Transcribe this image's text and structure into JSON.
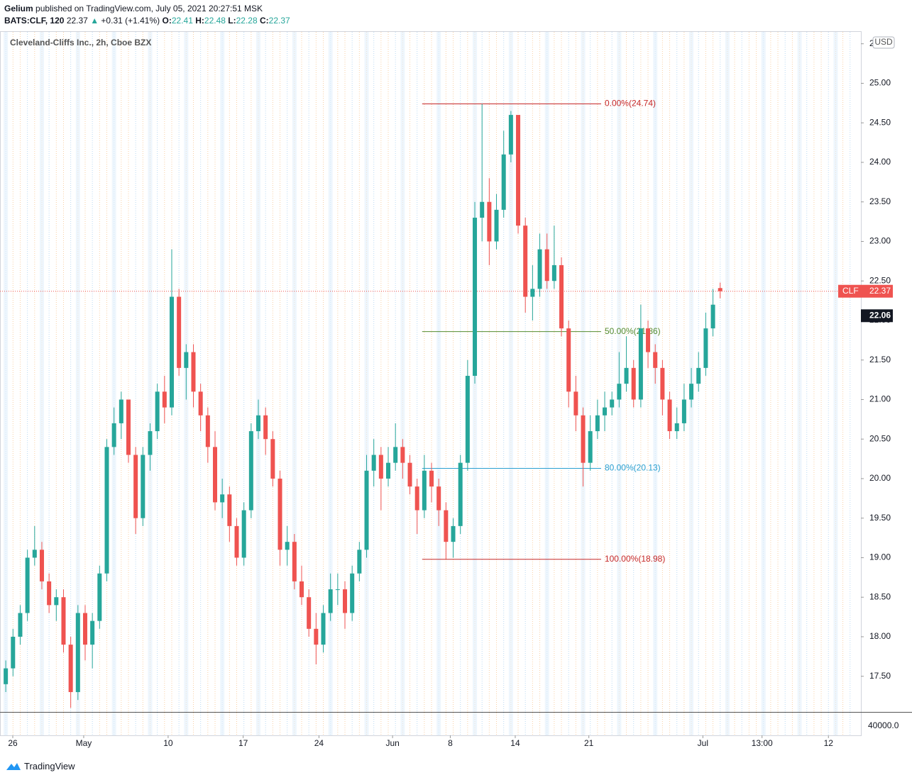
{
  "header": {
    "author": "Gelium",
    "published": "published on TradingView.com, July 05, 2021 20:27:51 MSK",
    "symbol": "BATS:CLF, 120",
    "change_arrow": "▲",
    "change": "+0.31 (+1.41%)",
    "o": "O:",
    "h": "H:",
    "l": "L:",
    "c": "C:"
  },
  "footer": {
    "brand": "TradingView"
  },
  "chart_data": {
    "type": "candlestick",
    "title": "Cleveland-Cliffs Inc., 2h, Cboe BZX",
    "currency": "USD",
    "up_color": "#26a69a",
    "down_color": "#ef5350",
    "ylim": [
      17.04,
      25.65
    ],
    "yticks": [
      {
        "value": 17.5,
        "label": "17.50"
      },
      {
        "value": 18,
        "label": "18.00"
      },
      {
        "value": 18.5,
        "label": "18.50"
      },
      {
        "value": 19,
        "label": "19.00"
      },
      {
        "value": 19.5,
        "label": "19.50"
      },
      {
        "value": 20,
        "label": "20.00"
      },
      {
        "value": 20.5,
        "label": "20.50"
      },
      {
        "value": 21,
        "label": "21.00"
      },
      {
        "value": 21.5,
        "label": "21.50"
      },
      {
        "value": 22,
        "label": "22.00"
      },
      {
        "value": 22.5,
        "label": "22.50"
      },
      {
        "value": 23,
        "label": "23.00"
      },
      {
        "value": 23.5,
        "label": "23.50"
      },
      {
        "value": 24,
        "label": "24.00"
      },
      {
        "value": 24.5,
        "label": "24.50"
      },
      {
        "value": 25,
        "label": "25.00"
      },
      {
        "value": 25.5,
        "label": "25.50"
      }
    ],
    "xlim": [
      -0.8,
      118.5
    ],
    "xticks": [
      {
        "value": 0.97,
        "label": "26"
      },
      {
        "value": 10.8,
        "label": "May"
      },
      {
        "value": 22.5,
        "label": "10"
      },
      {
        "value": 32.9,
        "label": "17"
      },
      {
        "value": 43.4,
        "label": "24"
      },
      {
        "value": 53.6,
        "label": "Jun"
      },
      {
        "value": 61.6,
        "label": "8"
      },
      {
        "value": 70.6,
        "label": "14"
      },
      {
        "value": 80.8,
        "label": "21"
      },
      {
        "value": 96.6,
        "label": "Jul"
      },
      {
        "value": 104.8,
        "label": "13:00"
      },
      {
        "value": 114.0,
        "label": "12"
      }
    ],
    "volume_ticks": [
      {
        "value": 40000,
        "label": "40000.0"
      }
    ],
    "ohlc": [
      [
        17.4,
        17.7,
        17.3,
        17.6
      ],
      [
        17.6,
        18.1,
        17.5,
        18.0
      ],
      [
        18.0,
        18.4,
        17.9,
        18.3
      ],
      [
        18.3,
        19.1,
        18.2,
        19.0
      ],
      [
        19.0,
        19.4,
        18.9,
        19.1
      ],
      [
        19.1,
        19.2,
        18.6,
        18.7
      ],
      [
        18.7,
        18.8,
        18.3,
        18.4
      ],
      [
        18.4,
        18.6,
        18.2,
        18.5
      ],
      [
        18.5,
        18.6,
        17.8,
        17.9
      ],
      [
        17.9,
        18.0,
        17.1,
        17.3
      ],
      [
        17.3,
        18.4,
        17.2,
        18.3
      ],
      [
        18.3,
        18.4,
        17.7,
        17.9
      ],
      [
        17.9,
        18.3,
        17.6,
        18.2
      ],
      [
        18.2,
        18.9,
        18.1,
        18.8
      ],
      [
        18.8,
        20.5,
        18.7,
        20.4
      ],
      [
        20.4,
        20.9,
        20.3,
        20.7
      ],
      [
        20.7,
        21.1,
        20.5,
        21.0
      ],
      [
        21.0,
        21.0,
        20.2,
        20.3
      ],
      [
        20.3,
        20.4,
        19.3,
        19.5
      ],
      [
        19.5,
        20.4,
        19.4,
        20.3
      ],
      [
        20.3,
        20.7,
        20.1,
        20.6
      ],
      [
        20.6,
        21.2,
        20.5,
        21.1
      ],
      [
        21.1,
        21.3,
        20.7,
        20.9
      ],
      [
        20.9,
        22.9,
        20.8,
        22.3
      ],
      [
        22.3,
        22.4,
        21.3,
        21.4
      ],
      [
        21.4,
        21.7,
        21.0,
        21.6
      ],
      [
        21.6,
        21.7,
        20.9,
        21.1
      ],
      [
        21.1,
        21.2,
        20.6,
        20.8
      ],
      [
        20.8,
        20.9,
        20.2,
        20.4
      ],
      [
        20.4,
        20.6,
        19.6,
        19.7
      ],
      [
        19.7,
        20.0,
        19.5,
        19.8
      ],
      [
        19.8,
        19.9,
        19.2,
        19.4
      ],
      [
        19.4,
        19.5,
        18.9,
        19.0
      ],
      [
        19.0,
        19.7,
        18.9,
        19.6
      ],
      [
        19.6,
        20.7,
        19.5,
        20.6
      ],
      [
        20.6,
        21.0,
        20.5,
        20.8
      ],
      [
        20.8,
        20.9,
        20.3,
        20.5
      ],
      [
        20.5,
        20.6,
        19.9,
        20.0
      ],
      [
        20.0,
        20.1,
        18.9,
        19.1
      ],
      [
        19.1,
        19.4,
        18.9,
        19.2
      ],
      [
        19.2,
        19.3,
        18.6,
        18.7
      ],
      [
        18.7,
        18.9,
        18.4,
        18.5
      ],
      [
        18.5,
        18.6,
        18.0,
        18.1
      ],
      [
        18.1,
        18.3,
        17.65,
        17.9
      ],
      [
        17.9,
        18.4,
        17.8,
        18.3
      ],
      [
        18.3,
        18.8,
        18.2,
        18.6
      ],
      [
        18.6,
        18.8,
        18.4,
        18.6
      ],
      [
        18.6,
        18.7,
        18.1,
        18.3
      ],
      [
        18.3,
        18.9,
        18.2,
        18.8
      ],
      [
        18.8,
        19.2,
        18.7,
        19.1
      ],
      [
        19.1,
        20.3,
        19.0,
        20.1
      ],
      [
        20.1,
        20.5,
        19.9,
        20.3
      ],
      [
        20.3,
        20.4,
        19.6,
        20.0
      ],
      [
        20.0,
        20.4,
        19.9,
        20.2
      ],
      [
        20.2,
        20.7,
        20.1,
        20.4
      ],
      [
        20.4,
        20.5,
        20.0,
        20.2
      ],
      [
        20.2,
        20.3,
        19.8,
        19.9
      ],
      [
        19.9,
        20.0,
        19.3,
        19.6
      ],
      [
        19.6,
        20.3,
        19.5,
        20.1
      ],
      [
        20.1,
        20.2,
        19.7,
        19.9
      ],
      [
        19.9,
        20.0,
        19.4,
        19.6
      ],
      [
        19.6,
        19.7,
        18.98,
        19.2
      ],
      [
        19.2,
        19.5,
        19.0,
        19.4
      ],
      [
        19.4,
        20.3,
        19.3,
        20.2
      ],
      [
        20.2,
        21.5,
        20.1,
        21.3
      ],
      [
        21.3,
        23.5,
        21.2,
        23.3
      ],
      [
        23.3,
        24.74,
        23.0,
        23.5
      ],
      [
        23.5,
        23.8,
        22.7,
        23.0
      ],
      [
        23.0,
        23.6,
        22.9,
        23.4
      ],
      [
        23.4,
        24.4,
        23.3,
        24.1
      ],
      [
        24.1,
        24.65,
        24.0,
        24.6
      ],
      [
        24.6,
        24.6,
        23.1,
        23.2
      ],
      [
        23.2,
        23.3,
        22.1,
        22.3
      ],
      [
        22.3,
        22.7,
        22.0,
        22.4
      ],
      [
        22.4,
        23.1,
        22.3,
        22.9
      ],
      [
        22.9,
        23.1,
        22.4,
        22.5
      ],
      [
        22.5,
        23.2,
        22.4,
        22.7
      ],
      [
        22.7,
        22.8,
        21.8,
        21.9
      ],
      [
        21.9,
        22.0,
        20.9,
        21.1
      ],
      [
        21.1,
        21.3,
        20.6,
        20.8
      ],
      [
        20.8,
        20.9,
        19.9,
        20.2
      ],
      [
        20.2,
        20.8,
        20.1,
        20.6
      ],
      [
        20.6,
        21.0,
        20.5,
        20.8
      ],
      [
        20.8,
        21.1,
        20.6,
        20.9
      ],
      [
        20.9,
        21.1,
        20.8,
        21.0
      ],
      [
        21.0,
        21.6,
        20.9,
        21.2
      ],
      [
        21.2,
        21.8,
        21.1,
        21.4
      ],
      [
        21.4,
        21.5,
        20.9,
        21.0
      ],
      [
        21.0,
        22.2,
        20.9,
        21.9
      ],
      [
        21.9,
        22.0,
        21.4,
        21.6
      ],
      [
        21.6,
        21.7,
        21.2,
        21.4
      ],
      [
        21.4,
        21.5,
        20.8,
        21.0
      ],
      [
        21.0,
        21.1,
        20.5,
        20.6
      ],
      [
        20.6,
        20.9,
        20.5,
        20.7
      ],
      [
        20.7,
        21.2,
        20.6,
        21.0
      ],
      [
        21.0,
        21.4,
        20.9,
        21.2
      ],
      [
        21.2,
        21.6,
        21.1,
        21.4
      ],
      [
        21.4,
        22.1,
        21.3,
        21.9
      ],
      [
        21.9,
        22.4,
        21.8,
        22.2
      ],
      [
        22.41,
        22.48,
        22.28,
        22.37
      ]
    ],
    "fib": {
      "x": [
        57.7,
        82.5
      ],
      "levels": [
        {
          "value": 24.74,
          "label": "0.00%(24.74)",
          "color": "#c62828"
        },
        {
          "value": 21.86,
          "label": "50.00%(21.86)",
          "color": "#558b2f"
        },
        {
          "value": 20.13,
          "label": "80.00%(20.13)",
          "color": "#2a9fd0"
        },
        {
          "value": 18.98,
          "label": "100.00%(18.98)",
          "color": "#c62828"
        }
      ]
    },
    "last_price": {
      "name": "CLF",
      "value": 22.37,
      "color": "#ef5350"
    },
    "marker": {
      "value": 22.06,
      "label": "22.06",
      "color": "#131722"
    }
  }
}
